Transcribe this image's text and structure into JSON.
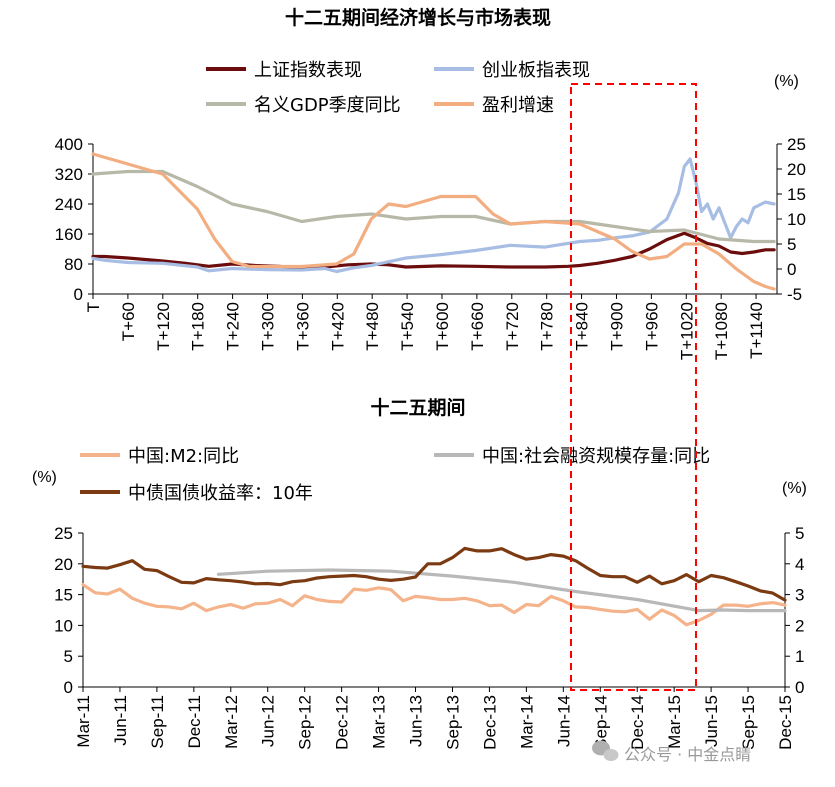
{
  "colors": {
    "dark_red": "#6b0d0d",
    "light_blue": "#a7bde4",
    "gray_green": "#b8b8a8",
    "orange": "#f2ad80",
    "light_orange": "#f4b38a",
    "gray": "#b8b8b8",
    "brown": "#7b3a12",
    "highlight_box": "#ff0000"
  },
  "watermark": {
    "icon": "wechat-icon",
    "text": "公众号 · 中金点睛"
  },
  "chart_data": [
    {
      "type": "line",
      "title": "十二五期间经济增长与市场表现",
      "left_axis": {
        "ticks": [
          "400",
          "320",
          "240",
          "160",
          "80",
          "0"
        ],
        "ylim": [
          0,
          400
        ]
      },
      "right_axis": {
        "unit": "(%)",
        "ticks": [
          "25",
          "20",
          "15",
          "10",
          "5",
          "0",
          "-5"
        ],
        "ylim": [
          -5,
          25
        ]
      },
      "x_ticks": [
        "T",
        "T+60",
        "T+120",
        "T+180",
        "T+240",
        "T+300",
        "T+360",
        "T+420",
        "T+480",
        "T+540",
        "T+600",
        "T+660",
        "T+720",
        "T+780",
        "T+840",
        "T+900",
        "T+960",
        "T+1020",
        "T+1080",
        "T+1140"
      ],
      "xlim": [
        0,
        1180
      ],
      "legend": [
        "上证指数表现",
        "创业板指表现",
        "名义GDP季度同比",
        "盈利增速"
      ],
      "series": [
        {
          "name": "上证指数表现",
          "axis": "left",
          "color_key": "dark_red",
          "x": [
            0,
            20,
            60,
            120,
            160,
            180,
            200,
            240,
            280,
            320,
            360,
            400,
            440,
            480,
            510,
            540,
            600,
            660,
            720,
            780,
            820,
            840,
            870,
            900,
            930,
            960,
            990,
            1020,
            1040,
            1060,
            1080,
            1100,
            1120,
            1140,
            1160,
            1175
          ],
          "y": [
            100,
            100,
            96,
            88,
            82,
            78,
            74,
            80,
            76,
            74,
            70,
            72,
            78,
            80,
            78,
            72,
            75,
            74,
            72,
            72,
            74,
            76,
            82,
            90,
            100,
            120,
            145,
            162,
            150,
            135,
            128,
            112,
            108,
            112,
            118,
            118
          ]
        },
        {
          "name": "创业板指表现",
          "axis": "left",
          "color_key": "light_blue",
          "x": [
            0,
            20,
            60,
            120,
            180,
            200,
            240,
            300,
            360,
            400,
            420,
            450,
            480,
            540,
            600,
            660,
            720,
            780,
            840,
            870,
            900,
            930,
            960,
            990,
            1010,
            1020,
            1030,
            1040,
            1050,
            1060,
            1070,
            1080,
            1090,
            1100,
            1110,
            1120,
            1130,
            1140,
            1160,
            1175
          ],
          "y": [
            95,
            90,
            84,
            82,
            72,
            62,
            68,
            65,
            64,
            68,
            60,
            70,
            76,
            96,
            105,
            116,
            130,
            125,
            140,
            143,
            150,
            155,
            165,
            200,
            270,
            340,
            360,
            300,
            220,
            240,
            200,
            230,
            190,
            150,
            180,
            200,
            190,
            230,
            245,
            240
          ]
        },
        {
          "name": "名义GDP季度同比",
          "axis": "right",
          "color_key": "gray_green",
          "x": [
            0,
            60,
            120,
            180,
            240,
            300,
            360,
            420,
            480,
            540,
            600,
            660,
            720,
            780,
            840,
            900,
            960,
            1020,
            1080,
            1140,
            1175
          ],
          "y": [
            19,
            19.5,
            19.5,
            16.5,
            13,
            11.5,
            9.5,
            10.5,
            11,
            10,
            10.5,
            10.5,
            9,
            9.5,
            9.5,
            8.5,
            7.5,
            7.8,
            6,
            5.5,
            5.5
          ]
        },
        {
          "name": "盈利增速",
          "axis": "right",
          "color_key": "orange",
          "x": [
            0,
            60,
            120,
            180,
            210,
            240,
            270,
            300,
            360,
            420,
            450,
            480,
            510,
            540,
            600,
            660,
            690,
            720,
            780,
            840,
            870,
            900,
            930,
            960,
            990,
            1020,
            1050,
            1080,
            1110,
            1140,
            1160,
            1175
          ],
          "y": [
            23,
            21,
            19,
            12,
            6,
            1.5,
            0.5,
            0.5,
            0.5,
            1,
            3,
            10,
            13,
            12.5,
            14.5,
            14.5,
            11,
            9,
            9.5,
            9,
            7.5,
            6,
            3.5,
            2,
            2.5,
            5,
            5,
            3,
            0,
            -2.5,
            -3.5,
            -4
          ]
        }
      ]
    },
    {
      "type": "line",
      "title": "十二五期间",
      "left_axis": {
        "unit": "(%)",
        "ticks": [
          "25",
          "20",
          "15",
          "10",
          "5",
          "0"
        ],
        "ylim": [
          0,
          25
        ]
      },
      "right_axis": {
        "unit": "(%)",
        "ticks": [
          "5",
          "4",
          "3",
          "2",
          "1",
          "0"
        ],
        "ylim": [
          0,
          5
        ]
      },
      "x_ticks": [
        "Mar-11",
        "Jun-11",
        "Sep-11",
        "Dec-11",
        "Mar-12",
        "Jun-12",
        "Sep-12",
        "Dec-12",
        "Mar-13",
        "Jun-13",
        "Sep-13",
        "Dec-13",
        "Mar-14",
        "Jun-14",
        "Sep-14",
        "Dec-14",
        "Mar-15",
        "Jun-15",
        "Sep-15",
        "Dec-15"
      ],
      "xlim": [
        0,
        57
      ],
      "legend": [
        "中国:M2:同比",
        "中国:社会融资规模存量:同比",
        "中债国债收益率：10年"
      ],
      "series": [
        {
          "name": "中国:M2:同比",
          "axis": "left",
          "color_key": "light_orange",
          "x": [
            0,
            1,
            2,
            3,
            4,
            5,
            6,
            7,
            8,
            9,
            10,
            11,
            12,
            13,
            14,
            15,
            16,
            17,
            18,
            19,
            20,
            21,
            22,
            23,
            24,
            25,
            26,
            27,
            28,
            29,
            30,
            31,
            32,
            33,
            34,
            35,
            36,
            37,
            38,
            39,
            40,
            41,
            42,
            43,
            44,
            45,
            46,
            47,
            48,
            49,
            50,
            51,
            52,
            53,
            54,
            55,
            56,
            57
          ],
          "y": [
            16.6,
            15.3,
            15.1,
            15.9,
            14.4,
            13.6,
            13.1,
            13.0,
            12.7,
            13.6,
            12.4,
            13.0,
            13.4,
            12.8,
            13.5,
            13.6,
            14.2,
            13.2,
            14.8,
            14.2,
            13.9,
            13.8,
            15.9,
            15.7,
            16.1,
            15.8,
            14.0,
            14.7,
            14.5,
            14.2,
            14.2,
            14.4,
            14.0,
            13.2,
            13.3,
            12.1,
            13.4,
            13.2,
            14.7,
            14.0,
            13.0,
            12.9,
            12.6,
            12.3,
            12.2,
            12.6,
            11.0,
            12.5,
            11.6,
            10.1,
            10.8,
            11.8,
            13.3,
            13.3,
            13.1,
            13.5,
            13.7,
            13.3
          ]
        },
        {
          "name": "中国:社会融资规模存量:同比",
          "axis": "left",
          "color_key": "gray",
          "x": [
            11,
            15,
            20,
            25,
            30,
            35,
            40,
            45,
            50,
            52,
            54,
            57
          ],
          "y": [
            18.3,
            18.8,
            19.0,
            18.8,
            18.0,
            17.0,
            15.5,
            14.2,
            12.4,
            12.5,
            12.4,
            12.4
          ]
        },
        {
          "name": "中债国债收益率：10年",
          "axis": "right",
          "color_key": "brown",
          "x": [
            0,
            1,
            2,
            3,
            4,
            5,
            6,
            7,
            8,
            9,
            10,
            11,
            12,
            13,
            14,
            15,
            16,
            17,
            18,
            19,
            20,
            21,
            22,
            23,
            24,
            25,
            26,
            27,
            28,
            29,
            30,
            31,
            32,
            33,
            34,
            35,
            36,
            37,
            38,
            39,
            40,
            41,
            42,
            43,
            44,
            45,
            46,
            47,
            48,
            49,
            50,
            51,
            52,
            53,
            54,
            55,
            56,
            57
          ],
          "y": [
            3.92,
            3.88,
            3.86,
            3.97,
            4.1,
            3.82,
            3.78,
            3.58,
            3.4,
            3.38,
            3.52,
            3.48,
            3.45,
            3.41,
            3.35,
            3.36,
            3.32,
            3.42,
            3.45,
            3.54,
            3.58,
            3.6,
            3.62,
            3.58,
            3.5,
            3.46,
            3.5,
            3.57,
            4.0,
            4.0,
            4.2,
            4.5,
            4.42,
            4.42,
            4.49,
            4.3,
            4.15,
            4.2,
            4.3,
            4.25,
            4.1,
            3.85,
            3.62,
            3.58,
            3.58,
            3.4,
            3.6,
            3.35,
            3.45,
            3.65,
            3.42,
            3.62,
            3.55,
            3.42,
            3.28,
            3.12,
            3.05,
            2.82
          ]
        }
      ]
    }
  ]
}
